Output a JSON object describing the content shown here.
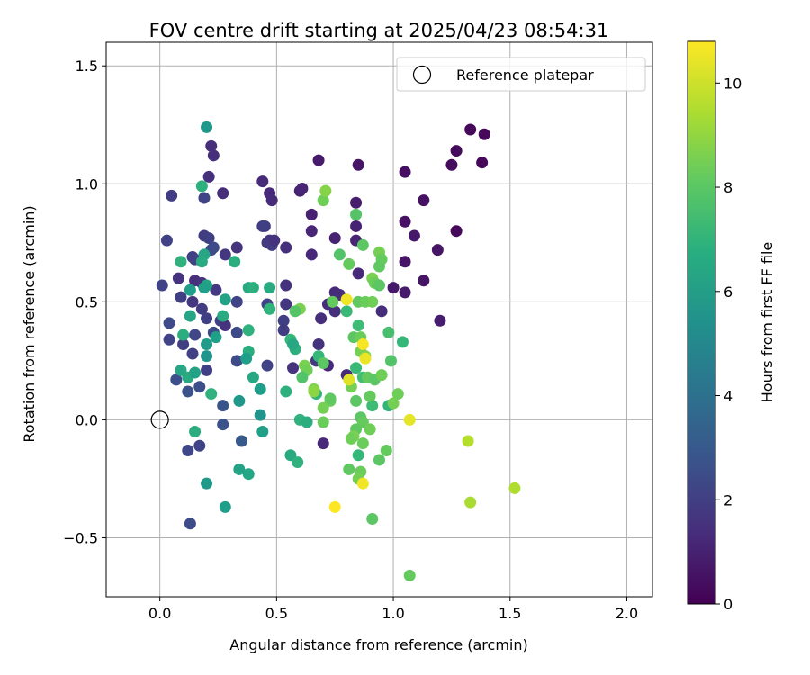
{
  "chart_data": {
    "type": "scatter",
    "title": "FOV centre drift starting at 2025/04/23 08:54:31",
    "xlabel": "Angular distance from reference (arcmin)",
    "ylabel": "Rotation from reference (arcmin)",
    "xlim": [
      -0.23,
      2.11
    ],
    "ylim": [
      -0.75,
      1.6
    ],
    "x_ticks": [
      0.0,
      0.5,
      1.0,
      1.5,
      2.0
    ],
    "x_tick_labels": [
      "0.0",
      "0.5",
      "1.0",
      "1.5",
      "2.0"
    ],
    "y_ticks": [
      -0.5,
      0.0,
      0.5,
      1.0,
      1.5
    ],
    "y_tick_labels": [
      "−0.5",
      "0.0",
      "0.5",
      "1.0",
      "1.5"
    ],
    "grid": true,
    "legend": {
      "placement": "top-right",
      "entries": [
        {
          "label": "Reference platepar",
          "marker": "open-circle"
        }
      ]
    },
    "reference_point": {
      "x": 0.0,
      "y": 0.0
    },
    "colormap": "viridis",
    "colorbar": {
      "label": "Hours from first FF file",
      "range": [
        0,
        10.8
      ],
      "ticks": [
        0,
        2,
        4,
        6,
        8,
        10
      ],
      "tick_labels": [
        "0",
        "2",
        "4",
        "6",
        "8",
        "10"
      ]
    },
    "points": [
      {
        "x": 1.33,
        "y": 1.23,
        "h": 0.2
      },
      {
        "x": 1.39,
        "y": 1.21,
        "h": 0.2
      },
      {
        "x": 1.27,
        "y": 1.14,
        "h": 0.3
      },
      {
        "x": 1.25,
        "y": 1.08,
        "h": 0.3
      },
      {
        "x": 1.38,
        "y": 1.09,
        "h": 0.2
      },
      {
        "x": 1.05,
        "y": 1.05,
        "h": 0.4
      },
      {
        "x": 1.13,
        "y": 0.93,
        "h": 0.5
      },
      {
        "x": 1.05,
        "y": 0.84,
        "h": 0.5
      },
      {
        "x": 1.27,
        "y": 0.8,
        "h": 0.2
      },
      {
        "x": 1.09,
        "y": 0.78,
        "h": 0.7
      },
      {
        "x": 1.19,
        "y": 0.72,
        "h": 0.6
      },
      {
        "x": 1.05,
        "y": 0.67,
        "h": 0.6
      },
      {
        "x": 1.13,
        "y": 0.59,
        "h": 0.6
      },
      {
        "x": 1.0,
        "y": 0.56,
        "h": 0.7
      },
      {
        "x": 1.05,
        "y": 0.54,
        "h": 0.8
      },
      {
        "x": 1.2,
        "y": 0.42,
        "h": 0.9
      },
      {
        "x": 0.85,
        "y": 1.08,
        "h": 0.6
      },
      {
        "x": 0.68,
        "y": 1.1,
        "h": 0.8
      },
      {
        "x": 0.84,
        "y": 0.92,
        "h": 0.9
      },
      {
        "x": 0.6,
        "y": 0.97,
        "h": 1.0
      },
      {
        "x": 0.61,
        "y": 0.98,
        "h": 1.1
      },
      {
        "x": 0.65,
        "y": 0.87,
        "h": 1.0
      },
      {
        "x": 0.65,
        "y": 0.8,
        "h": 1.1
      },
      {
        "x": 0.75,
        "y": 0.77,
        "h": 1.0
      },
      {
        "x": 0.84,
        "y": 0.82,
        "h": 1.0
      },
      {
        "x": 0.84,
        "y": 0.76,
        "h": 1.1
      },
      {
        "x": 0.65,
        "y": 0.7,
        "h": 1.2
      },
      {
        "x": 0.85,
        "y": 0.62,
        "h": 1.2
      },
      {
        "x": 0.75,
        "y": 0.54,
        "h": 1.3
      },
      {
        "x": 0.77,
        "y": 0.53,
        "h": 1.4
      },
      {
        "x": 0.74,
        "y": 0.5,
        "h": 1.3
      },
      {
        "x": 0.72,
        "y": 0.49,
        "h": 1.4
      },
      {
        "x": 0.75,
        "y": 0.46,
        "h": 1.5
      },
      {
        "x": 0.69,
        "y": 0.43,
        "h": 1.4
      },
      {
        "x": 0.95,
        "y": 0.46,
        "h": 1.4
      },
      {
        "x": 0.68,
        "y": 0.32,
        "h": 1.6
      },
      {
        "x": 0.67,
        "y": 0.25,
        "h": 1.8
      },
      {
        "x": 0.72,
        "y": 0.23,
        "h": 1.2
      },
      {
        "x": 0.8,
        "y": 0.19,
        "h": 1.3
      },
      {
        "x": 0.57,
        "y": 0.22,
        "h": 1.6
      },
      {
        "x": 0.7,
        "y": -0.1,
        "h": 1.2
      },
      {
        "x": 0.54,
        "y": 0.57,
        "h": 1.6
      },
      {
        "x": 0.54,
        "y": 0.49,
        "h": 1.7
      },
      {
        "x": 0.47,
        "y": 0.96,
        "h": 1.2
      },
      {
        "x": 0.48,
        "y": 0.93,
        "h": 1.3
      },
      {
        "x": 0.44,
        "y": 1.01,
        "h": 1.3
      },
      {
        "x": 0.44,
        "y": 0.82,
        "h": 1.9
      },
      {
        "x": 0.45,
        "y": 0.82,
        "h": 2.0
      },
      {
        "x": 0.47,
        "y": 0.76,
        "h": 1.7
      },
      {
        "x": 0.46,
        "y": 0.75,
        "h": 1.8
      },
      {
        "x": 0.48,
        "y": 0.74,
        "h": 1.9
      },
      {
        "x": 0.49,
        "y": 0.76,
        "h": 1.6
      },
      {
        "x": 0.54,
        "y": 0.73,
        "h": 1.5
      },
      {
        "x": 0.46,
        "y": 0.49,
        "h": 2.2
      },
      {
        "x": 0.47,
        "y": 0.47,
        "h": 2.3
      },
      {
        "x": 0.53,
        "y": 0.42,
        "h": 2.0
      },
      {
        "x": 0.53,
        "y": 0.38,
        "h": 1.9
      },
      {
        "x": 0.46,
        "y": 0.23,
        "h": 2.2
      },
      {
        "x": 0.05,
        "y": 0.95,
        "h": 1.9
      },
      {
        "x": 0.21,
        "y": 1.03,
        "h": 1.5
      },
      {
        "x": 0.22,
        "y": 1.16,
        "h": 1.4
      },
      {
        "x": 0.23,
        "y": 1.12,
        "h": 1.5
      },
      {
        "x": 0.27,
        "y": 0.96,
        "h": 1.4
      },
      {
        "x": 0.19,
        "y": 0.94,
        "h": 2.2
      },
      {
        "x": 0.03,
        "y": 0.76,
        "h": 2.1
      },
      {
        "x": 0.19,
        "y": 0.78,
        "h": 1.9
      },
      {
        "x": 0.21,
        "y": 0.77,
        "h": 2.0
      },
      {
        "x": 0.22,
        "y": 0.72,
        "h": 2.6
      },
      {
        "x": 0.23,
        "y": 0.73,
        "h": 2.5
      },
      {
        "x": 0.28,
        "y": 0.7,
        "h": 1.7
      },
      {
        "x": 0.33,
        "y": 0.73,
        "h": 1.6
      },
      {
        "x": 0.14,
        "y": 0.69,
        "h": 2.0
      },
      {
        "x": 0.15,
        "y": 0.68,
        "h": 2.1
      },
      {
        "x": 0.01,
        "y": 0.57,
        "h": 2.2
      },
      {
        "x": 0.08,
        "y": 0.6,
        "h": 1.6
      },
      {
        "x": 0.15,
        "y": 0.59,
        "h": 1.5
      },
      {
        "x": 0.18,
        "y": 0.58,
        "h": 1.6
      },
      {
        "x": 0.24,
        "y": 0.55,
        "h": 1.8
      },
      {
        "x": 0.09,
        "y": 0.52,
        "h": 2.0
      },
      {
        "x": 0.14,
        "y": 0.5,
        "h": 1.7
      },
      {
        "x": 0.18,
        "y": 0.47,
        "h": 1.9
      },
      {
        "x": 0.2,
        "y": 0.43,
        "h": 2.0
      },
      {
        "x": 0.26,
        "y": 0.42,
        "h": 2.1
      },
      {
        "x": 0.28,
        "y": 0.4,
        "h": 1.6
      },
      {
        "x": 0.33,
        "y": 0.5,
        "h": 2.2
      },
      {
        "x": 0.04,
        "y": 0.41,
        "h": 2.4
      },
      {
        "x": 0.15,
        "y": 0.36,
        "h": 2.3
      },
      {
        "x": 0.23,
        "y": 0.37,
        "h": 2.5
      },
      {
        "x": 0.33,
        "y": 0.37,
        "h": 2.4
      },
      {
        "x": 0.04,
        "y": 0.34,
        "h": 2.2
      },
      {
        "x": 0.1,
        "y": 0.32,
        "h": 2.0
      },
      {
        "x": 0.14,
        "y": 0.28,
        "h": 2.1
      },
      {
        "x": 0.33,
        "y": 0.25,
        "h": 2.4
      },
      {
        "x": 0.2,
        "y": 0.21,
        "h": 2.0
      },
      {
        "x": 0.07,
        "y": 0.17,
        "h": 2.6
      },
      {
        "x": 0.12,
        "y": 0.12,
        "h": 2.7
      },
      {
        "x": 0.17,
        "y": 0.14,
        "h": 2.6
      },
      {
        "x": 0.27,
        "y": 0.06,
        "h": 2.8
      },
      {
        "x": 0.27,
        "y": -0.02,
        "h": 2.7
      },
      {
        "x": 0.35,
        "y": -0.09,
        "h": 3.0
      },
      {
        "x": 0.17,
        "y": -0.11,
        "h": 2.2
      },
      {
        "x": 0.12,
        "y": -0.13,
        "h": 2.3
      },
      {
        "x": 0.13,
        "y": -0.44,
        "h": 2.5
      },
      {
        "x": 0.2,
        "y": 1.24,
        "h": 5.8
      },
      {
        "x": 0.18,
        "y": 0.99,
        "h": 6.8
      },
      {
        "x": 0.19,
        "y": 0.7,
        "h": 6.4
      },
      {
        "x": 0.18,
        "y": 0.67,
        "h": 6.6
      },
      {
        "x": 0.09,
        "y": 0.67,
        "h": 6.9
      },
      {
        "x": 0.32,
        "y": 0.67,
        "h": 6.7
      },
      {
        "x": 0.2,
        "y": 0.57,
        "h": 6.3
      },
      {
        "x": 0.19,
        "y": 0.56,
        "h": 6.1
      },
      {
        "x": 0.13,
        "y": 0.55,
        "h": 6.0
      },
      {
        "x": 0.38,
        "y": 0.56,
        "h": 6.5
      },
      {
        "x": 0.4,
        "y": 0.56,
        "h": 6.8
      },
      {
        "x": 0.47,
        "y": 0.56,
        "h": 6.6
      },
      {
        "x": 0.28,
        "y": 0.51,
        "h": 6.2
      },
      {
        "x": 0.13,
        "y": 0.44,
        "h": 6.4
      },
      {
        "x": 0.27,
        "y": 0.44,
        "h": 6.6
      },
      {
        "x": 0.47,
        "y": 0.47,
        "h": 7.0
      },
      {
        "x": 0.1,
        "y": 0.36,
        "h": 6.7
      },
      {
        "x": 0.24,
        "y": 0.35,
        "h": 6.1
      },
      {
        "x": 0.2,
        "y": 0.32,
        "h": 5.9
      },
      {
        "x": 0.38,
        "y": 0.38,
        "h": 6.9
      },
      {
        "x": 0.38,
        "y": 0.29,
        "h": 6.7
      },
      {
        "x": 0.2,
        "y": 0.27,
        "h": 5.6
      },
      {
        "x": 0.37,
        "y": 0.26,
        "h": 6.0
      },
      {
        "x": 0.09,
        "y": 0.21,
        "h": 6.4
      },
      {
        "x": 0.12,
        "y": 0.18,
        "h": 6.6
      },
      {
        "x": 0.15,
        "y": 0.2,
        "h": 6.2
      },
      {
        "x": 0.4,
        "y": 0.18,
        "h": 6.5
      },
      {
        "x": 0.22,
        "y": 0.11,
        "h": 6.9
      },
      {
        "x": 0.43,
        "y": 0.13,
        "h": 6.0
      },
      {
        "x": 0.34,
        "y": 0.08,
        "h": 5.7
      },
      {
        "x": 0.43,
        "y": 0.02,
        "h": 5.6
      },
      {
        "x": 0.15,
        "y": -0.05,
        "h": 6.7
      },
      {
        "x": 0.44,
        "y": -0.05,
        "h": 6.1
      },
      {
        "x": 0.2,
        "y": -0.27,
        "h": 5.8
      },
      {
        "x": 0.28,
        "y": -0.37,
        "h": 6.0
      },
      {
        "x": 0.34,
        "y": -0.21,
        "h": 6.2
      },
      {
        "x": 0.38,
        "y": -0.23,
        "h": 6.4
      },
      {
        "x": 0.56,
        "y": 0.34,
        "h": 7.2
      },
      {
        "x": 0.58,
        "y": 0.3,
        "h": 6.8
      },
      {
        "x": 0.57,
        "y": 0.32,
        "h": 6.5
      },
      {
        "x": 0.54,
        "y": 0.12,
        "h": 6.8
      },
      {
        "x": 0.6,
        "y": 0.0,
        "h": 6.9
      },
      {
        "x": 0.63,
        "y": -0.01,
        "h": 6.7
      },
      {
        "x": 0.56,
        "y": -0.15,
        "h": 6.6
      },
      {
        "x": 0.59,
        "y": -0.18,
        "h": 6.9
      },
      {
        "x": 0.67,
        "y": 0.11,
        "h": 7.0
      },
      {
        "x": 0.68,
        "y": 0.27,
        "h": 7.2
      },
      {
        "x": 0.85,
        "y": 0.4,
        "h": 7.4
      },
      {
        "x": 0.84,
        "y": 0.22,
        "h": 7.3
      },
      {
        "x": 0.87,
        "y": 0.18,
        "h": 7.5
      },
      {
        "x": 0.85,
        "y": -0.15,
        "h": 7.2
      },
      {
        "x": 0.8,
        "y": 0.46,
        "h": 7.3
      },
      {
        "x": 0.91,
        "y": 0.06,
        "h": 7.4
      },
      {
        "x": 0.98,
        "y": 0.06,
        "h": 7.1
      },
      {
        "x": 0.98,
        "y": 0.37,
        "h": 7.6
      },
      {
        "x": 0.99,
        "y": 0.25,
        "h": 7.8
      },
      {
        "x": 1.04,
        "y": 0.33,
        "h": 7.2
      },
      {
        "x": 0.7,
        "y": 0.93,
        "h": 8.4
      },
      {
        "x": 0.71,
        "y": 0.97,
        "h": 8.8
      },
      {
        "x": 0.84,
        "y": 0.87,
        "h": 7.9
      },
      {
        "x": 0.87,
        "y": 0.74,
        "h": 8.0
      },
      {
        "x": 0.77,
        "y": 0.7,
        "h": 7.8
      },
      {
        "x": 0.81,
        "y": 0.66,
        "h": 8.2
      },
      {
        "x": 0.94,
        "y": 0.71,
        "h": 8.5
      },
      {
        "x": 0.95,
        "y": 0.68,
        "h": 8.2
      },
      {
        "x": 0.94,
        "y": 0.65,
        "h": 8.1
      },
      {
        "x": 0.91,
        "y": 0.6,
        "h": 8.6
      },
      {
        "x": 0.92,
        "y": 0.58,
        "h": 8.3
      },
      {
        "x": 0.94,
        "y": 0.57,
        "h": 8.0
      },
      {
        "x": 0.85,
        "y": 0.5,
        "h": 8.1
      },
      {
        "x": 0.88,
        "y": 0.5,
        "h": 8.3
      },
      {
        "x": 0.91,
        "y": 0.5,
        "h": 8.4
      },
      {
        "x": 0.74,
        "y": 0.5,
        "h": 8.2
      },
      {
        "x": 0.6,
        "y": 0.47,
        "h": 8.6
      },
      {
        "x": 0.58,
        "y": 0.46,
        "h": 7.9
      },
      {
        "x": 0.83,
        "y": 0.35,
        "h": 8.0
      },
      {
        "x": 0.86,
        "y": 0.35,
        "h": 8.3
      },
      {
        "x": 0.86,
        "y": 0.29,
        "h": 8.5
      },
      {
        "x": 0.88,
        "y": 0.27,
        "h": 8.7
      },
      {
        "x": 0.62,
        "y": 0.23,
        "h": 8.6
      },
      {
        "x": 0.63,
        "y": 0.21,
        "h": 8.4
      },
      {
        "x": 0.7,
        "y": 0.24,
        "h": 8.0
      },
      {
        "x": 0.61,
        "y": 0.18,
        "h": 7.8
      },
      {
        "x": 0.89,
        "y": 0.18,
        "h": 8.2
      },
      {
        "x": 0.92,
        "y": 0.17,
        "h": 8.0
      },
      {
        "x": 0.95,
        "y": 0.19,
        "h": 8.4
      },
      {
        "x": 0.82,
        "y": 0.14,
        "h": 8.5
      },
      {
        "x": 0.66,
        "y": 0.13,
        "h": 8.7
      },
      {
        "x": 0.66,
        "y": 0.12,
        "h": 8.9
      },
      {
        "x": 0.73,
        "y": 0.08,
        "h": 8.3
      },
      {
        "x": 0.73,
        "y": 0.09,
        "h": 8.1
      },
      {
        "x": 0.7,
        "y": 0.05,
        "h": 8.5
      },
      {
        "x": 0.84,
        "y": 0.08,
        "h": 8.0
      },
      {
        "x": 0.9,
        "y": 0.1,
        "h": 8.2
      },
      {
        "x": 1.02,
        "y": 0.11,
        "h": 8.4
      },
      {
        "x": 1.0,
        "y": 0.07,
        "h": 8.5
      },
      {
        "x": 0.7,
        "y": -0.01,
        "h": 8.3
      },
      {
        "x": 0.86,
        "y": 0.01,
        "h": 8.0
      },
      {
        "x": 0.87,
        "y": -0.01,
        "h": 8.2
      },
      {
        "x": 0.9,
        "y": -0.04,
        "h": 8.4
      },
      {
        "x": 0.84,
        "y": -0.04,
        "h": 8.1
      },
      {
        "x": 0.83,
        "y": -0.07,
        "h": 8.6
      },
      {
        "x": 0.82,
        "y": -0.08,
        "h": 8.4
      },
      {
        "x": 0.87,
        "y": -0.1,
        "h": 8.3
      },
      {
        "x": 0.97,
        "y": -0.13,
        "h": 8.2
      },
      {
        "x": 0.94,
        "y": -0.17,
        "h": 8.0
      },
      {
        "x": 0.81,
        "y": -0.21,
        "h": 8.1
      },
      {
        "x": 0.86,
        "y": -0.22,
        "h": 8.3
      },
      {
        "x": 0.85,
        "y": -0.25,
        "h": 8.5
      },
      {
        "x": 0.91,
        "y": -0.42,
        "h": 8.0
      },
      {
        "x": 1.07,
        "y": -0.66,
        "h": 8.2
      },
      {
        "x": 0.8,
        "y": 0.51,
        "h": 10.6
      },
      {
        "x": 0.87,
        "y": 0.32,
        "h": 10.7
      },
      {
        "x": 0.88,
        "y": 0.26,
        "h": 10.5
      },
      {
        "x": 0.81,
        "y": 0.17,
        "h": 10.3
      },
      {
        "x": 1.07,
        "y": 0.0,
        "h": 10.4
      },
      {
        "x": 0.87,
        "y": -0.27,
        "h": 10.6
      },
      {
        "x": 0.75,
        "y": -0.37,
        "h": 10.8
      },
      {
        "x": 1.32,
        "y": -0.09,
        "h": 9.6
      },
      {
        "x": 1.33,
        "y": -0.35,
        "h": 9.4
      },
      {
        "x": 1.52,
        "y": -0.29,
        "h": 9.5
      }
    ]
  }
}
